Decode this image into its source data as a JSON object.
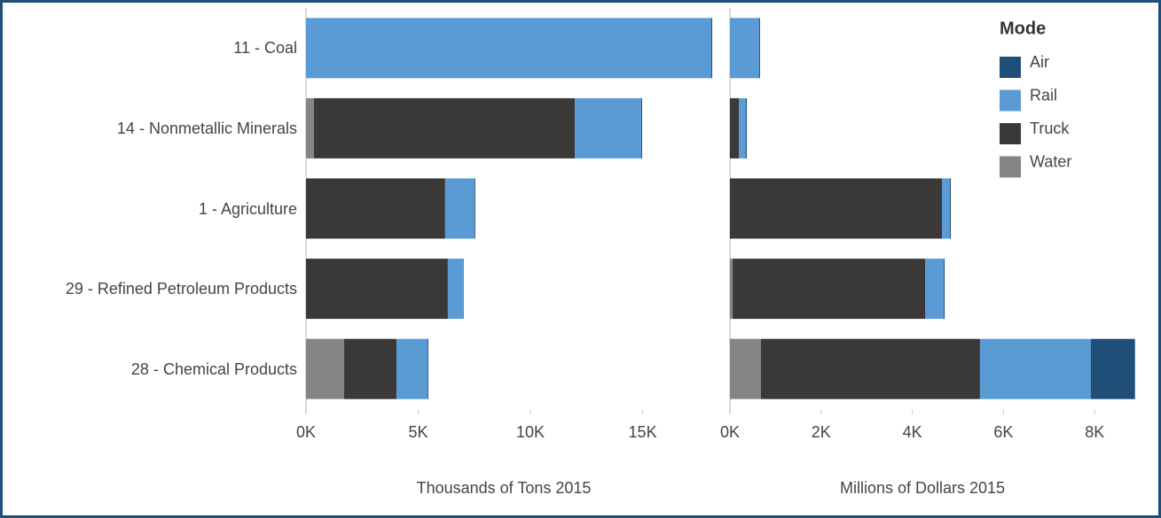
{
  "chart_data": {
    "type": "bar",
    "categories": [
      "11 - Coal",
      "14 - Nonmetallic Minerals",
      "1 - Agriculture",
      "29 - Refined Petroleum Products",
      "28 - Chemical Products"
    ],
    "legend_title": "Mode",
    "series": [
      {
        "name": "Air",
        "color": "#1f4e79"
      },
      {
        "name": "Rail",
        "color": "#5b9bd5"
      },
      {
        "name": "Truck",
        "color": "#3a3938"
      },
      {
        "name": "Water",
        "color": "#858585"
      }
    ],
    "panels": [
      {
        "xlabel": "Thousands of Tons 2015",
        "xlim": [
          0,
          18850
        ],
        "xticks": [
          {
            "value": 0,
            "label": "0K"
          },
          {
            "value": 5000,
            "label": "5K"
          },
          {
            "value": 10000,
            "label": "10K"
          },
          {
            "value": 15000,
            "label": "15K"
          }
        ],
        "series": [
          {
            "values": [
              40,
              40,
              40,
              30,
              40
            ]
          },
          {
            "values": [
              18060,
              2960,
              1300,
              670,
              1380
            ]
          },
          {
            "values": [
              0,
              11620,
              6200,
              6320,
              2330
            ]
          },
          {
            "values": [
              0,
              355,
              0,
              0,
              1700
            ]
          }
        ]
      },
      {
        "xlabel": "Millions of Dollars 2015",
        "xlim": [
          0,
          9280
        ],
        "xticks": [
          {
            "value": 0,
            "label": "0K"
          },
          {
            "value": 2000,
            "label": "2K"
          },
          {
            "value": 4000,
            "label": "4K"
          },
          {
            "value": 6000,
            "label": "6K"
          },
          {
            "value": 8000,
            "label": "8K"
          }
        ],
        "series": [
          {
            "values": [
              20,
              20,
              20,
              20,
              970
            ]
          },
          {
            "values": [
              640,
              155,
              175,
              410,
              2430
            ]
          },
          {
            "values": [
              0,
              195,
              4650,
              4220,
              4805
            ]
          },
          {
            "values": [
              0,
              0,
              0,
              60,
              680
            ]
          }
        ]
      }
    ]
  }
}
